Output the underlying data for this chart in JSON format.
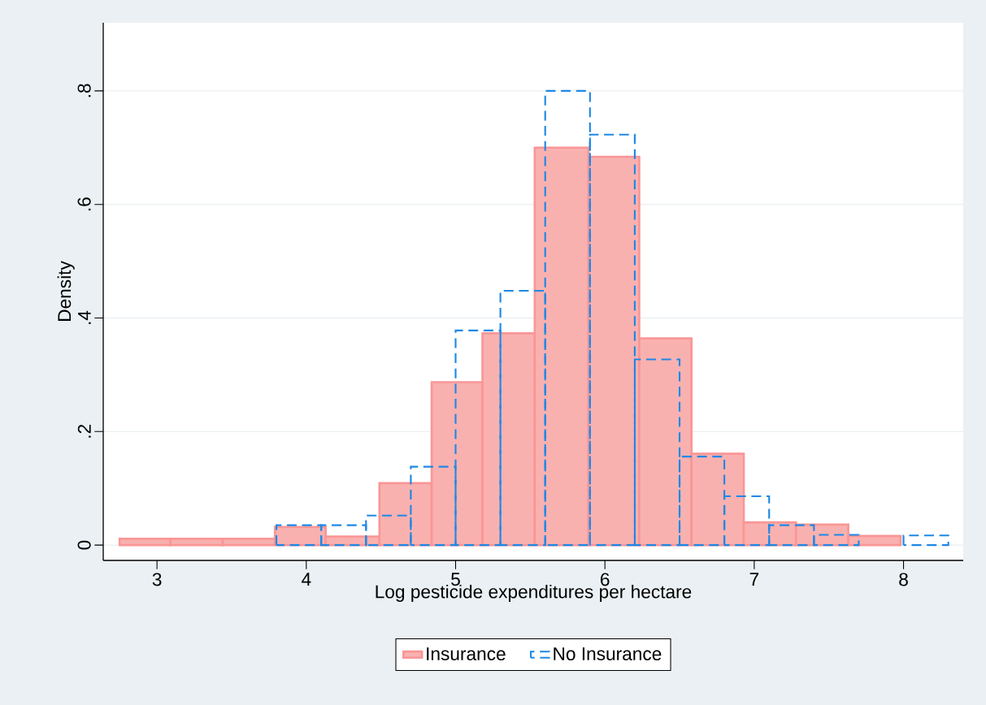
{
  "chart_data": {
    "type": "histogram",
    "xlabel": "Log pesticide expenditures per hectare",
    "ylabel": "Density",
    "xlim": [
      2.64,
      8.4
    ],
    "ylim": [
      -0.027,
      0.92
    ],
    "xticks": [
      3,
      4,
      5,
      6,
      7,
      8
    ],
    "yticks": [
      {
        "value": 0,
        "label": "0"
      },
      {
        "value": 0.2,
        "label": ".2"
      },
      {
        "value": 0.4,
        "label": ".4"
      },
      {
        "value": 0.6,
        "label": ".6"
      },
      {
        "value": 0.8,
        "label": ".8"
      }
    ],
    "grid": "y",
    "legend": "bottom",
    "bins": [
      2.75,
      3.09,
      3.44,
      3.79,
      4.13,
      4.49,
      4.84,
      5.18,
      5.53,
      5.89,
      6.23,
      6.58,
      6.93,
      7.28,
      7.63,
      7.98
    ],
    "series": [
      {
        "name": "Insurance",
        "color": "#f9b1b0",
        "line_style": "solid",
        "values": [
          0.011,
          0.011,
          0.011,
          0.032,
          0.015,
          0.109,
          0.287,
          0.373,
          0.7,
          0.684,
          0.364,
          0.161,
          0.04,
          0.036,
          0.016
        ]
      },
      {
        "name": "No Insurance",
        "color": "#1e88e5",
        "line_style": "dashed",
        "bins": [
          3.8,
          4.1,
          4.4,
          4.7,
          5.0,
          5.3,
          5.6,
          5.9,
          6.2,
          6.5,
          6.8,
          7.1,
          7.4,
          7.7,
          8.0,
          8.3
        ],
        "values": [
          0.035,
          0.035,
          0.052,
          0.138,
          0.378,
          0.448,
          0.8,
          0.723,
          0.327,
          0.156,
          0.086,
          0.035,
          0.018,
          null,
          0.017
        ]
      }
    ]
  }
}
